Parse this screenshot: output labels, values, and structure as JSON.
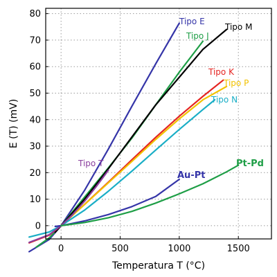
{
  "chart_data": {
    "type": "line",
    "title": "",
    "xlabel": "Temperatura T (°C)",
    "ylabel": "E (T) (mV)",
    "xlim": [
      -130,
      1780
    ],
    "ylim": [
      -5,
      82
    ],
    "xticks": [
      0,
      500,
      1000,
      1500
    ],
    "yticks": [
      0,
      10,
      20,
      30,
      40,
      50,
      60,
      70,
      80
    ],
    "grid": true,
    "legend": "labels next to curves",
    "series": [
      {
        "name": "Tipo E",
        "color": "#3535a8",
        "bold_label": false,
        "points": [
          [
            -270,
            -9.8
          ],
          [
            -100,
            -5.2
          ],
          [
            0,
            0
          ],
          [
            200,
            13.4
          ],
          [
            400,
            28.9
          ],
          [
            600,
            45.1
          ],
          [
            800,
            61.0
          ],
          [
            1000,
            76.4
          ]
        ]
      },
      {
        "name": "Tipo J",
        "color": "#1e9e46",
        "bold_label": false,
        "points": [
          [
            -210,
            -8.1
          ],
          [
            -100,
            -4.6
          ],
          [
            0,
            0
          ],
          [
            200,
            10.8
          ],
          [
            400,
            21.8
          ],
          [
            600,
            33.1
          ],
          [
            800,
            45.5
          ],
          [
            1000,
            57.9
          ],
          [
            1200,
            69.6
          ]
        ]
      },
      {
        "name": "Tipo M",
        "color": "#000000",
        "bold_label": false,
        "points": [
          [
            -50,
            -2.5
          ],
          [
            0,
            0
          ],
          [
            200,
            10.0
          ],
          [
            400,
            21.5
          ],
          [
            600,
            33.5
          ],
          [
            800,
            45.5
          ],
          [
            1000,
            56.0
          ],
          [
            1200,
            66.5
          ],
          [
            1400,
            74.0
          ]
        ]
      },
      {
        "name": "Tipo K",
        "color": "#e52421",
        "bold_label": false,
        "points": [
          [
            -270,
            -6.5
          ],
          [
            -100,
            -3.6
          ],
          [
            0,
            0
          ],
          [
            200,
            8.1
          ],
          [
            400,
            16.4
          ],
          [
            600,
            24.9
          ],
          [
            800,
            33.3
          ],
          [
            1000,
            41.3
          ],
          [
            1200,
            48.8
          ],
          [
            1372,
            54.9
          ]
        ]
      },
      {
        "name": "Tipo P",
        "color": "#f2c200",
        "bold_label": false,
        "points": [
          [
            0,
            0
          ],
          [
            200,
            8.0
          ],
          [
            400,
            16.2
          ],
          [
            600,
            24.3
          ],
          [
            800,
            32.5
          ],
          [
            1000,
            40.3
          ],
          [
            1200,
            47.5
          ],
          [
            1400,
            52.5
          ]
        ]
      },
      {
        "name": "Tipo N",
        "color": "#1aaec6",
        "bold_label": false,
        "points": [
          [
            -270,
            -4.3
          ],
          [
            -100,
            -2.4
          ],
          [
            0,
            0
          ],
          [
            200,
            5.9
          ],
          [
            400,
            13.0
          ],
          [
            600,
            20.6
          ],
          [
            800,
            28.5
          ],
          [
            1000,
            36.3
          ],
          [
            1200,
            43.8
          ],
          [
            1300,
            47.5
          ]
        ]
      },
      {
        "name": "Tipo T",
        "color": "#8a3f9e",
        "bold_label": false,
        "points": [
          [
            -270,
            -6.3
          ],
          [
            -100,
            -3.4
          ],
          [
            0,
            0
          ],
          [
            100,
            4.3
          ],
          [
            200,
            9.3
          ],
          [
            300,
            14.9
          ],
          [
            400,
            20.9
          ]
        ]
      },
      {
        "name": "Au-Pt",
        "color": "#3535a8",
        "bold_label": true,
        "points": [
          [
            -50,
            -0.3
          ],
          [
            0,
            0
          ],
          [
            200,
            1.8
          ],
          [
            400,
            4.2
          ],
          [
            600,
            7.2
          ],
          [
            800,
            11.0
          ],
          [
            1000,
            17.5
          ]
        ]
      },
      {
        "name": "Pt-Pd",
        "color": "#1e9e46",
        "bold_label": true,
        "points": [
          [
            0,
            0
          ],
          [
            200,
            1.2
          ],
          [
            400,
            3.0
          ],
          [
            600,
            5.4
          ],
          [
            800,
            8.5
          ],
          [
            1000,
            12.0
          ],
          [
            1200,
            15.8
          ],
          [
            1400,
            20.3
          ],
          [
            1500,
            22.8
          ]
        ]
      }
    ]
  }
}
